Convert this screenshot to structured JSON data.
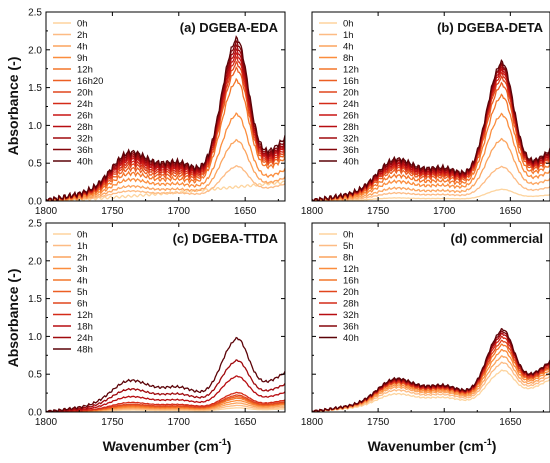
{
  "figure": {
    "xlabel": "Wavenumber (cm",
    "xlabel_sup": "-1",
    "xlabel_end": ")",
    "ylabel": "Absorbance (-)"
  },
  "chart_data": [
    {
      "type": "line",
      "title": "(a) DGEBA-EDA",
      "xlim": [
        1800,
        1620
      ],
      "ylim": [
        0,
        2.5
      ],
      "xticks": [
        1800,
        1750,
        1700,
        1650
      ],
      "yticks": [
        0.0,
        0.5,
        1.0,
        1.5,
        2.0,
        2.5
      ],
      "show_ytick_labels": true,
      "show_xtick_labels": true,
      "legend": "top-left",
      "series": [
        {
          "name": "0h",
          "color": "#fdd49e",
          "peak": 0.25,
          "shoulder": 0.0,
          "tail": 0.25,
          "ramp": true
        },
        {
          "name": "2h",
          "color": "#fdbb84",
          "peak": 0.45,
          "shoulder": 0.1,
          "tail": 0.22
        },
        {
          "name": "4h",
          "color": "#fca45e",
          "peak": 0.8,
          "shoulder": 0.15,
          "tail": 0.3
        },
        {
          "name": "9h",
          "color": "#fb8d3d",
          "peak": 1.15,
          "shoulder": 0.22,
          "tail": 0.4
        },
        {
          "name": "12h",
          "color": "#f4772a",
          "peak": 1.6,
          "shoulder": 0.28,
          "tail": 0.55
        },
        {
          "name": "16h20",
          "color": "#ec5f23",
          "peak": 1.75,
          "shoulder": 0.33,
          "tail": 0.6
        },
        {
          "name": "20h",
          "color": "#e1461d",
          "peak": 1.82,
          "shoulder": 0.37,
          "tail": 0.63
        },
        {
          "name": "24h",
          "color": "#d42b18",
          "peak": 1.88,
          "shoulder": 0.4,
          "tail": 0.66
        },
        {
          "name": "26h",
          "color": "#c81513",
          "peak": 1.93,
          "shoulder": 0.43,
          "tail": 0.69
        },
        {
          "name": "28h",
          "color": "#b70d11",
          "peak": 1.98,
          "shoulder": 0.45,
          "tail": 0.71
        },
        {
          "name": "32h",
          "color": "#a00a0e",
          "peak": 2.03,
          "shoulder": 0.47,
          "tail": 0.73
        },
        {
          "name": "36h",
          "color": "#85060b",
          "peak": 2.08,
          "shoulder": 0.49,
          "tail": 0.76
        },
        {
          "name": "40h",
          "color": "#5c0308",
          "peak": 2.13,
          "shoulder": 0.51,
          "tail": 0.8
        }
      ]
    },
    {
      "type": "line",
      "title": "(b) DGEBA-DETA",
      "xlim": [
        1800,
        1620
      ],
      "ylim": [
        0,
        2.5
      ],
      "xticks": [
        1800,
        1750,
        1700,
        1650
      ],
      "yticks": [
        0.0,
        0.5,
        1.0,
        1.5,
        2.0,
        2.5
      ],
      "show_ytick_labels": false,
      "show_xtick_labels": true,
      "legend": "top-left",
      "series": [
        {
          "name": "0h",
          "color": "#fdd49e",
          "peak": 0.15,
          "shoulder": 0.03,
          "tail": 0.08
        },
        {
          "name": "1h",
          "color": "#fdbb84",
          "peak": 0.45,
          "shoulder": 0.08,
          "tail": 0.18
        },
        {
          "name": "4h",
          "color": "#fca45e",
          "peak": 0.82,
          "shoulder": 0.13,
          "tail": 0.28
        },
        {
          "name": "8h",
          "color": "#fb8d3d",
          "peak": 1.15,
          "shoulder": 0.2,
          "tail": 0.38
        },
        {
          "name": "12h",
          "color": "#f4772a",
          "peak": 1.4,
          "shoulder": 0.26,
          "tail": 0.46
        },
        {
          "name": "16h",
          "color": "#ec5f23",
          "peak": 1.55,
          "shoulder": 0.31,
          "tail": 0.51
        },
        {
          "name": "20h",
          "color": "#e1461d",
          "peak": 1.63,
          "shoulder": 0.34,
          "tail": 0.54
        },
        {
          "name": "24h",
          "color": "#d42b18",
          "peak": 1.68,
          "shoulder": 0.36,
          "tail": 0.56
        },
        {
          "name": "26h",
          "color": "#c81513",
          "peak": 1.72,
          "shoulder": 0.38,
          "tail": 0.58
        },
        {
          "name": "28h",
          "color": "#b70d11",
          "peak": 1.75,
          "shoulder": 0.39,
          "tail": 0.59
        },
        {
          "name": "32h",
          "color": "#a00a0e",
          "peak": 1.78,
          "shoulder": 0.41,
          "tail": 0.61
        },
        {
          "name": "36h",
          "color": "#85060b",
          "peak": 1.8,
          "shoulder": 0.42,
          "tail": 0.62
        },
        {
          "name": "40h",
          "color": "#5c0308",
          "peak": 1.83,
          "shoulder": 0.44,
          "tail": 0.64
        }
      ]
    },
    {
      "type": "line",
      "title": "(c) DGEBA-TTDA",
      "xlim": [
        1800,
        1620
      ],
      "ylim": [
        0,
        2.5
      ],
      "xticks": [
        1800,
        1750,
        1700,
        1650
      ],
      "yticks": [
        0.0,
        0.5,
        1.0,
        1.5,
        2.0,
        2.5
      ],
      "show_ytick_labels": true,
      "show_xtick_labels": true,
      "legend": "top-left",
      "series": [
        {
          "name": "0h",
          "color": "#fdd49e",
          "peak": 0.05,
          "shoulder": 0.02,
          "tail": 0.04
        },
        {
          "name": "1h",
          "color": "#fdbb84",
          "peak": 0.08,
          "shoulder": 0.03,
          "tail": 0.06
        },
        {
          "name": "2h",
          "color": "#fca45e",
          "peak": 0.11,
          "shoulder": 0.04,
          "tail": 0.08
        },
        {
          "name": "3h",
          "color": "#fb8d3d",
          "peak": 0.14,
          "shoulder": 0.05,
          "tail": 0.1
        },
        {
          "name": "4h",
          "color": "#f4772a",
          "peak": 0.17,
          "shoulder": 0.06,
          "tail": 0.11
        },
        {
          "name": "5h",
          "color": "#ec5f23",
          "peak": 0.19,
          "shoulder": 0.07,
          "tail": 0.12
        },
        {
          "name": "6h",
          "color": "#e1461d",
          "peak": 0.21,
          "shoulder": 0.08,
          "tail": 0.13
        },
        {
          "name": "12h",
          "color": "#d42b18",
          "peak": 0.24,
          "shoulder": 0.1,
          "tail": 0.15
        },
        {
          "name": "18h",
          "color": "#b70d11",
          "peak": 0.45,
          "shoulder": 0.16,
          "tail": 0.25
        },
        {
          "name": "24h",
          "color": "#a00a0e",
          "peak": 0.65,
          "shoulder": 0.24,
          "tail": 0.35
        },
        {
          "name": "48h",
          "color": "#5c0308",
          "peak": 0.93,
          "shoulder": 0.33,
          "tail": 0.5
        }
      ]
    },
    {
      "type": "line",
      "title": "(d) commercial",
      "xlim": [
        1800,
        1620
      ],
      "ylim": [
        0,
        2.5
      ],
      "xticks": [
        1800,
        1750,
        1700,
        1650
      ],
      "yticks": [
        0.0,
        0.5,
        1.0,
        1.5,
        2.0,
        2.5
      ],
      "show_ytick_labels": false,
      "show_xtick_labels": true,
      "legend": "top-left",
      "series": [
        {
          "name": "0h",
          "color": "#fdd49e",
          "peak": 0.5,
          "shoulder": 0.18,
          "tail": 0.42
        },
        {
          "name": "5h",
          "color": "#fdbb84",
          "peak": 0.6,
          "shoulder": 0.22,
          "tail": 0.46
        },
        {
          "name": "8h",
          "color": "#fca45e",
          "peak": 0.68,
          "shoulder": 0.25,
          "tail": 0.5
        },
        {
          "name": "12h",
          "color": "#fb8d3d",
          "peak": 0.76,
          "shoulder": 0.27,
          "tail": 0.54
        },
        {
          "name": "16h",
          "color": "#f4772a",
          "peak": 0.83,
          "shoulder": 0.29,
          "tail": 0.57
        },
        {
          "name": "20h",
          "color": "#e1461d",
          "peak": 0.88,
          "shoulder": 0.3,
          "tail": 0.59
        },
        {
          "name": "28h",
          "color": "#d42b18",
          "peak": 0.93,
          "shoulder": 0.31,
          "tail": 0.61
        },
        {
          "name": "32h",
          "color": "#b70d11",
          "peak": 0.97,
          "shoulder": 0.32,
          "tail": 0.63
        },
        {
          "name": "36h",
          "color": "#85060b",
          "peak": 1.0,
          "shoulder": 0.33,
          "tail": 0.64
        },
        {
          "name": "40h",
          "color": "#5c0308",
          "peak": 1.03,
          "shoulder": 0.34,
          "tail": 0.65
        }
      ]
    }
  ]
}
